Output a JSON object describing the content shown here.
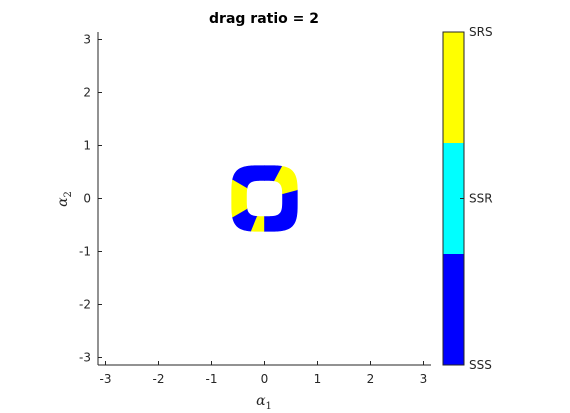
{
  "chart_data": {
    "type": "heatmap",
    "title": "drag ratio = 2",
    "xlabel": {
      "base": "α",
      "sub": "1"
    },
    "ylabel": {
      "base": "α",
      "sub": "2"
    },
    "xlim": [
      -3.1416,
      3.1416
    ],
    "ylim": [
      -3.1416,
      3.1416
    ],
    "xticks": [
      -3,
      -2,
      -1,
      0,
      1,
      2,
      3
    ],
    "yticks": [
      -3,
      -2,
      -1,
      0,
      1,
      2,
      3
    ],
    "grid": false,
    "colorbar": {
      "labels": [
        "SSS",
        "SSR",
        "SRS"
      ],
      "colors": [
        "#0000ff",
        "#00ffff",
        "#ffff00"
      ]
    },
    "region": {
      "shape": "ring",
      "center": [
        0,
        0
      ],
      "inner_radius": 0.34,
      "outer_radius": 0.62,
      "squareness": 4,
      "segments": [
        {
          "state": "SSS",
          "from_deg": -150,
          "to_deg": -112
        },
        {
          "state": "SRS",
          "from_deg": -112,
          "to_deg": -90
        },
        {
          "state": "SSS",
          "from_deg": -90,
          "to_deg": 15
        },
        {
          "state": "SRS",
          "from_deg": 15,
          "to_deg": 62
        },
        {
          "state": "SSS",
          "from_deg": 62,
          "to_deg": 90
        },
        {
          "state": "SSS",
          "from_deg": 90,
          "to_deg": 150
        },
        {
          "state": "SRS",
          "from_deg": 150,
          "to_deg": 210
        }
      ]
    }
  }
}
